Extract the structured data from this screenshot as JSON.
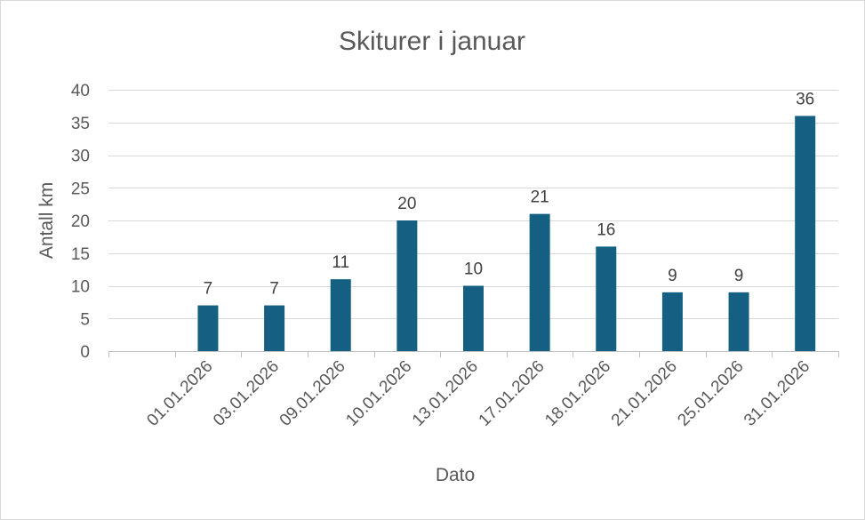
{
  "chart_data": {
    "type": "bar",
    "title": "Skiturer i januar",
    "xlabel": "Dato",
    "ylabel": "Antall km",
    "categories": [
      "",
      "01.01.2026",
      "03.01.2026",
      "09.01.2026",
      "10.01.2026",
      "13.01.2026",
      "17.01.2026",
      "18.01.2026",
      "21.01.2026",
      "25.01.2026",
      "31.01.2026"
    ],
    "values": [
      null,
      7,
      7,
      11,
      20,
      10,
      21,
      16,
      9,
      9,
      36
    ],
    "ylim": [
      0,
      40
    ],
    "yticks": [
      0,
      5,
      10,
      15,
      20,
      25,
      30,
      35,
      40
    ],
    "grid": true,
    "legend": "none",
    "bar_color": "#156082"
  }
}
